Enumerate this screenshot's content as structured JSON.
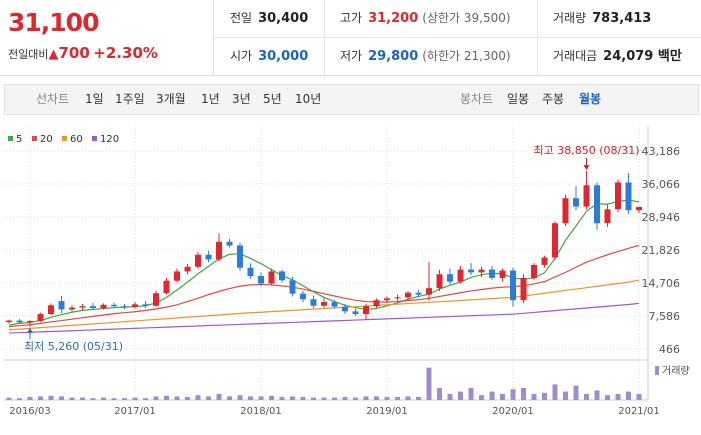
{
  "header": {
    "price": "31,100",
    "change_label": "전일대비",
    "change": "700",
    "change_rate": "+2.30%",
    "info": [
      {
        "label": "전일",
        "value": "30,400"
      },
      {
        "label": "고가",
        "value": "31,200",
        "note": "(상한가 39,500)"
      },
      {
        "label": "거래량",
        "value": "783,413"
      },
      {
        "label": "시가",
        "value": "30,000"
      },
      {
        "label": "저가",
        "value": "29,800",
        "note": "(하한가 21,300)"
      },
      {
        "label": "거래대금",
        "value": "24,079 백만"
      }
    ]
  },
  "toolbar": {
    "line_chart": "선차트",
    "periods": [
      "1일",
      "1주일",
      "3개월",
      "1년",
      "3년",
      "5년",
      "10년"
    ],
    "candle_chart": "봉차트",
    "candle_types": [
      "일봉",
      "주봉",
      "월봉"
    ]
  },
  "chart_data": {
    "type": "candlestick",
    "up_color": "#e0262f",
    "down_color": "#2f7bd8",
    "grid": true,
    "categories": [
      null,
      null,
      "2016/03",
      null,
      null,
      null,
      null,
      null,
      null,
      null,
      null,
      null,
      "2017/01",
      null,
      null,
      null,
      null,
      null,
      null,
      null,
      null,
      null,
      null,
      null,
      "2018/01",
      null,
      null,
      null,
      null,
      null,
      null,
      null,
      null,
      null,
      null,
      null,
      "2019/01",
      null,
      null,
      null,
      null,
      null,
      null,
      null,
      null,
      null,
      null,
      null,
      "2020/01",
      null,
      null,
      null,
      null,
      null,
      null,
      null,
      null,
      null,
      null,
      null,
      "2021/01"
    ],
    "open": [
      6300,
      6600,
      6200,
      6500,
      8000,
      10800,
      9000,
      9400,
      9700,
      9300,
      10000,
      9700,
      9500,
      10100,
      9800,
      12500,
      15200,
      17200,
      18200,
      20800,
      19800,
      23600,
      22800,
      18000,
      16200,
      14600,
      17200,
      15300,
      12400,
      11200,
      9800,
      10600,
      9600,
      8600,
      8000,
      9700,
      11000,
      11400,
      11600,
      12600,
      12200,
      13600,
      16600,
      15000,
      17600,
      17000,
      17600,
      15800,
      17400,
      11000,
      15800,
      18600,
      20200,
      27600,
      33000,
      31200,
      35800,
      27600,
      30600,
      36400,
      30400
    ],
    "high": [
      6800,
      6900,
      6700,
      8300,
      10300,
      11900,
      9900,
      10200,
      10400,
      10300,
      10500,
      10200,
      10600,
      10800,
      13000,
      15800,
      17800,
      18800,
      21400,
      21600,
      25400,
      24200,
      23400,
      18900,
      17000,
      17800,
      17600,
      16000,
      13000,
      12000,
      11400,
      11000,
      10200,
      9200,
      10200,
      11400,
      11800,
      12200,
      13000,
      13200,
      19200,
      17600,
      17800,
      18400,
      19000,
      18200,
      18400,
      17800,
      18000,
      16600,
      19000,
      20600,
      28000,
      33800,
      35600,
      38850,
      36400,
      31600,
      37000,
      38400,
      31200
    ],
    "low": [
      5900,
      6000,
      5260,
      6300,
      7800,
      8200,
      8500,
      8800,
      9000,
      9000,
      9300,
      9100,
      9200,
      9300,
      9600,
      12200,
      14800,
      16500,
      17800,
      19200,
      19400,
      22400,
      17400,
      15600,
      14000,
      14200,
      14800,
      11800,
      10600,
      9300,
      9400,
      9200,
      8000,
      7600,
      6800,
      9300,
      10400,
      10600,
      11000,
      11600,
      10900,
      13000,
      14400,
      14600,
      16400,
      16000,
      15400,
      15000,
      9600,
      10400,
      15400,
      18000,
      19600,
      27000,
      30400,
      30600,
      26200,
      26800,
      30000,
      29600,
      29800
    ],
    "close": [
      6600,
      6200,
      6500,
      8000,
      9900,
      9000,
      9400,
      9700,
      9300,
      10000,
      9700,
      9500,
      10100,
      9800,
      12500,
      15200,
      17200,
      18200,
      20800,
      19800,
      23600,
      22800,
      18000,
      16200,
      14600,
      17200,
      15300,
      12400,
      11200,
      9800,
      10600,
      9600,
      8600,
      8000,
      9700,
      11000,
      11400,
      11600,
      12600,
      12200,
      13600,
      16600,
      15000,
      17600,
      17000,
      17600,
      15800,
      17400,
      11000,
      15800,
      18600,
      20200,
      27600,
      33000,
      31200,
      35800,
      27600,
      30600,
      36400,
      30400,
      31100
    ],
    "moving_averages": [
      {
        "name": "5",
        "color": "#3caa3c",
        "values": [
          5600,
          6000,
          6200,
          6600,
          7300,
          7900,
          8400,
          8800,
          9000,
          9200,
          9400,
          9500,
          9600,
          9800,
          10400,
          11600,
          13200,
          14900,
          16700,
          18300,
          19900,
          20900,
          21000,
          20000,
          18900,
          17600,
          16300,
          15400,
          14100,
          12800,
          11600,
          10700,
          9900,
          9400,
          9000,
          9200,
          9800,
          10400,
          11200,
          11800,
          12300,
          13400,
          14200,
          14900,
          15900,
          16500,
          16800,
          16700,
          15800,
          15500,
          15800,
          16900,
          20000,
          23900,
          27000,
          30200,
          31800,
          31700,
          32300,
          32600,
          32200
        ]
      },
      {
        "name": "20",
        "color": "#e0474c",
        "values": [
          5300,
          5500,
          5700,
          6000,
          6300,
          6600,
          6900,
          7200,
          7500,
          7800,
          8100,
          8300,
          8500,
          8800,
          9100,
          9500,
          10000,
          10700,
          11400,
          12200,
          12900,
          13500,
          14000,
          14300,
          14400,
          14300,
          14100,
          13800,
          13400,
          12900,
          12400,
          11900,
          11400,
          11000,
          10700,
          10600,
          10600,
          10700,
          10900,
          11100,
          11400,
          11800,
          12200,
          12600,
          13000,
          13300,
          13600,
          13800,
          13900,
          14100,
          14500,
          15000,
          16000,
          17000,
          18100,
          19200,
          20000,
          20800,
          21500,
          22200,
          22800
        ]
      },
      {
        "name": "60",
        "color": "#f0922a",
        "values": [
          4600,
          4760,
          4920,
          5080,
          5240,
          5400,
          5560,
          5720,
          5880,
          6040,
          6200,
          6360,
          6520,
          6680,
          6840,
          7000,
          7160,
          7320,
          7480,
          7640,
          7800,
          7960,
          8120,
          8280,
          8400,
          8530,
          8670,
          8800,
          8930,
          9070,
          9200,
          9330,
          9470,
          9600,
          9730,
          9870,
          10000,
          10130,
          10270,
          10400,
          10530,
          10670,
          10800,
          10930,
          11070,
          11200,
          11330,
          11470,
          11600,
          11900,
          12200,
          12500,
          12800,
          13100,
          13400,
          13700,
          14000,
          14300,
          14600,
          14900,
          15300
        ]
      },
      {
        "name": "120",
        "color": "#9b59d0",
        "values": [
          3900,
          3990,
          4070,
          4160,
          4240,
          4330,
          4410,
          4500,
          4580,
          4670,
          4750,
          4840,
          4920,
          5010,
          5090,
          5180,
          5260,
          5350,
          5430,
          5520,
          5600,
          5690,
          5770,
          5860,
          5940,
          6030,
          6110,
          6200,
          6280,
          6370,
          6450,
          6540,
          6620,
          6710,
          6790,
          6880,
          6960,
          7050,
          7130,
          7220,
          7300,
          7390,
          7470,
          7560,
          7640,
          7730,
          7810,
          7900,
          7980,
          8170,
          8360,
          8550,
          8740,
          8930,
          9120,
          9310,
          9500,
          9690,
          9880,
          10070,
          10300
        ]
      }
    ],
    "ylim": [
      466,
      43186
    ],
    "yticks": [
      466,
      {
        "value": 7586,
        "label": "7,586"
      },
      {
        "value": 14706,
        "label": "14,706"
      },
      {
        "value": 21826,
        "label": "21,826"
      },
      {
        "value": 28946,
        "label": "28,946"
      },
      {
        "value": 36066,
        "label": "36,066"
      },
      {
        "value": 43186,
        "label": "43,186"
      }
    ],
    "max_annotation": "최고 38,850 (08/31)",
    "min_annotation": "최저 5,260 (05/31)",
    "volume_label": "거래량",
    "volume_color": "#9f8bcf",
    "volume_ylim": [
      0,
      30000000
    ],
    "volume": [
      2000000,
      1500000,
      2500000,
      3000000,
      3500000,
      3000000,
      2000000,
      2000000,
      1500000,
      2000000,
      1500000,
      1500000,
      2000000,
      1500000,
      3000000,
      3500000,
      3000000,
      2500000,
      4000000,
      3000000,
      5000000,
      3000000,
      4000000,
      3000000,
      3000000,
      3500000,
      2500000,
      3000000,
      2500000,
      2000000,
      2000000,
      2000000,
      2500000,
      2000000,
      3000000,
      3000000,
      2500000,
      2500000,
      3000000,
      2500000,
      27000000,
      10000000,
      5000000,
      7000000,
      10000000,
      4000000,
      7000000,
      5000000,
      9000000,
      10000000,
      5000000,
      6000000,
      13000000,
      7000000,
      12000000,
      5000000,
      8000000,
      4000000,
      5000000,
      7000000,
      5000000
    ]
  }
}
